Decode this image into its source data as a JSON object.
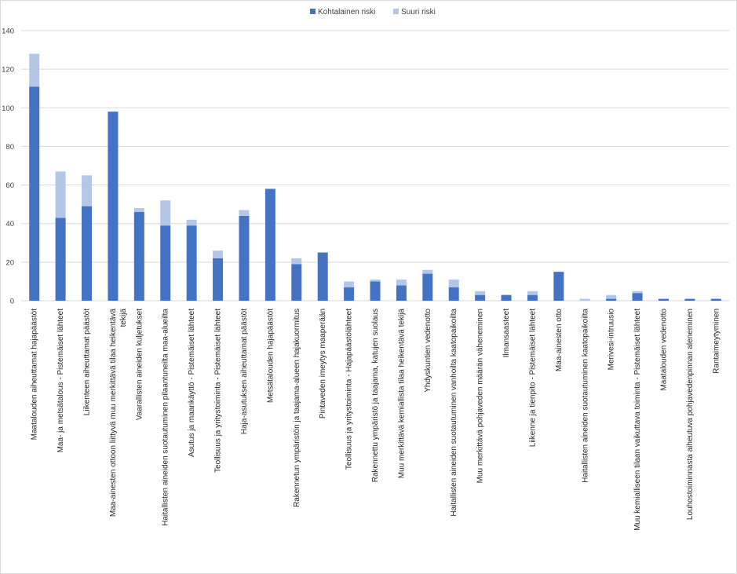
{
  "chart_data": {
    "type": "bar",
    "stacked": true,
    "title": "",
    "xlabel": "",
    "ylabel": "",
    "ylim": [
      0,
      140
    ],
    "yticks": [
      0,
      20,
      40,
      60,
      80,
      100,
      120,
      140
    ],
    "grid": true,
    "legend_position": "top",
    "categories": [
      [
        "Maatalouden aiheuttamat hajapäästöt"
      ],
      [
        "Maa- ja metsätalous - Pistemäiset lähteet"
      ],
      [
        "Liikenteen aiheuttamat päästöt"
      ],
      [
        "Maa-ainesten ottoon liittyvä muu merkittävä tilaa heikentävä",
        "tekijä"
      ],
      [
        "Vaarallisten aineiden kuljetukset"
      ],
      [
        "Haitallisten aineiden suotautuminen pilaantuneilta maa-alueilta"
      ],
      [
        "Asutus ja maankäyttö - Pistemäiset lähteet"
      ],
      [
        "Teollisuus ja yritystoiminta - Pistemäiset lähteet"
      ],
      [
        "Haja-asutuksen aiheuttamat päästöt"
      ],
      [
        "Metsätalouden hajapäästöt"
      ],
      [
        "Rakennetun ympäristön ja taajama-alueen hajakuormitus"
      ],
      [
        "Pintaveden imeytys maaperään"
      ],
      [
        "Teollisuus ja yritystoiminta - Hajapäästölähteet"
      ],
      [
        "Rakennettu ympäristö ja taajama, katujen suolaus"
      ],
      [
        "Muu merkittävä kemiallista tilaa heikentävä tekijä"
      ],
      [
        "Yhdyskuntien vedenotto"
      ],
      [
        "Haitallisten aineiden suotautuminen vanhoilta kaatopaikoilta"
      ],
      [
        "Muu merkittävä pohjaveden määrän väheneminen"
      ],
      [
        "Ilmansaasteet"
      ],
      [
        "Liikenne ja tienpito - Pistemäiset lähteet"
      ],
      [
        "Maa-ainesten otto"
      ],
      [
        "Haitallisten aineiden suotautuminen kaatopaikoilta"
      ],
      [
        "Merivesi-intruusio"
      ],
      [
        "Muu kemialliseen tilaan vaikuttava toiminta - Pistemäiset lähteet"
      ],
      [
        "Maatalouden vedenotto"
      ],
      [
        "Louhostoiminnasta aiheutuva pohjavedenpinnan aleneminen"
      ],
      [
        "Rantaimeytyminen"
      ]
    ],
    "series": [
      {
        "name": "Kohtalainen riski",
        "color": "#4472c4",
        "values": [
          111,
          43,
          49,
          98,
          46,
          39,
          39,
          22,
          44,
          58,
          19,
          25,
          7,
          10,
          8,
          14,
          7,
          3,
          3,
          3,
          15,
          0,
          1,
          4,
          1,
          1,
          1
        ]
      },
      {
        "name": "Suuri riski",
        "color": "#b4c7e7",
        "values": [
          17,
          24,
          16,
          0,
          2,
          13,
          3,
          4,
          3,
          0,
          3,
          0,
          3,
          1,
          3,
          2,
          4,
          2,
          0,
          2,
          0,
          1,
          2,
          1,
          0,
          0,
          0
        ]
      }
    ]
  }
}
